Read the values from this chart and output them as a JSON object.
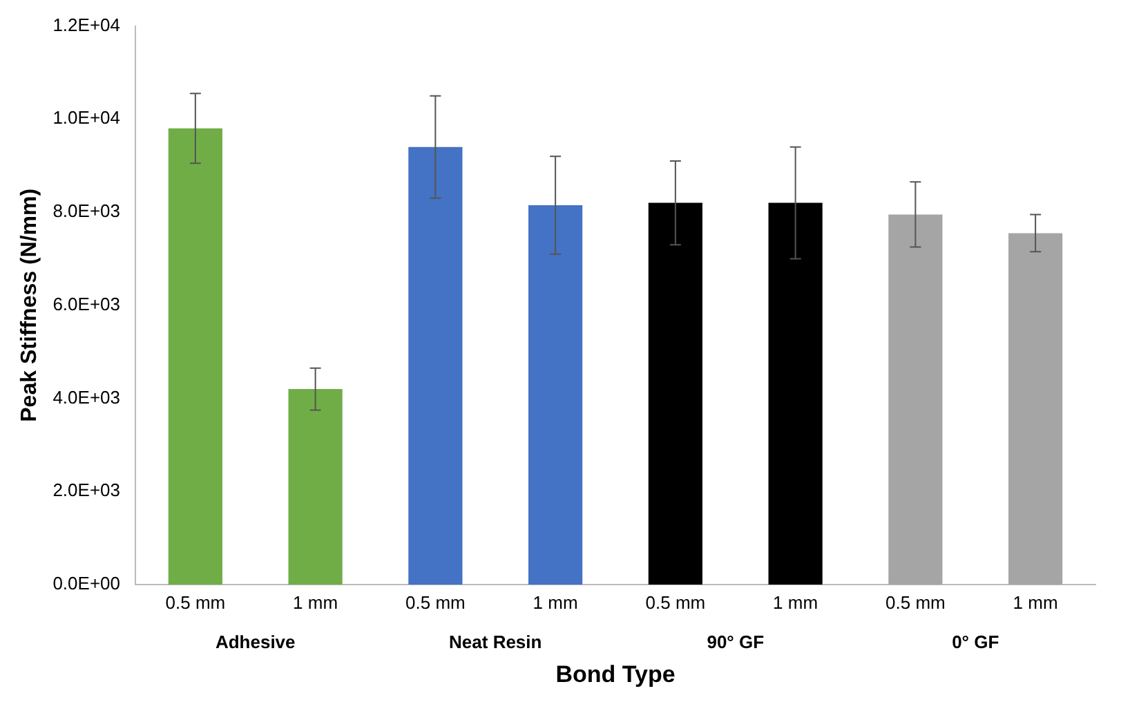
{
  "chart_data": {
    "type": "bar",
    "xlabel": "Bond Type",
    "ylabel": "Peak Stiffness (N/mm)",
    "categories": [
      "0.5 mm",
      "1 mm",
      "0.5 mm",
      "1 mm",
      "0.5 mm",
      "1 mm",
      "0.5 mm",
      "1 mm"
    ],
    "values": [
      9800,
      4200,
      9400,
      8150,
      8200,
      8200,
      7950,
      7550
    ],
    "colors": [
      "#70ad47",
      "#70ad47",
      "#4472c4",
      "#4472c4",
      "#000000",
      "#000000",
      "#a5a5a5",
      "#a5a5a5"
    ],
    "errors": [
      750,
      450,
      1100,
      1050,
      900,
      1200,
      700,
      400
    ],
    "annotations": [
      "Adhesive",
      "Neat Resin",
      "90° GF",
      "0° GF"
    ],
    "ylim": [
      0,
      12000
    ],
    "yticks": [
      {
        "value": 0,
        "label": "0.0E+00"
      },
      {
        "value": 2000,
        "label": "2.0E+03"
      },
      {
        "value": 4000,
        "label": "4.0E+03"
      },
      {
        "value": 6000,
        "label": "6.0E+03"
      },
      {
        "value": 8000,
        "label": "8.0E+03"
      },
      {
        "value": 10000,
        "label": "1.0E+04"
      },
      {
        "value": 12000,
        "label": "1.2E+04"
      }
    ],
    "grid": false,
    "legend": false
  }
}
